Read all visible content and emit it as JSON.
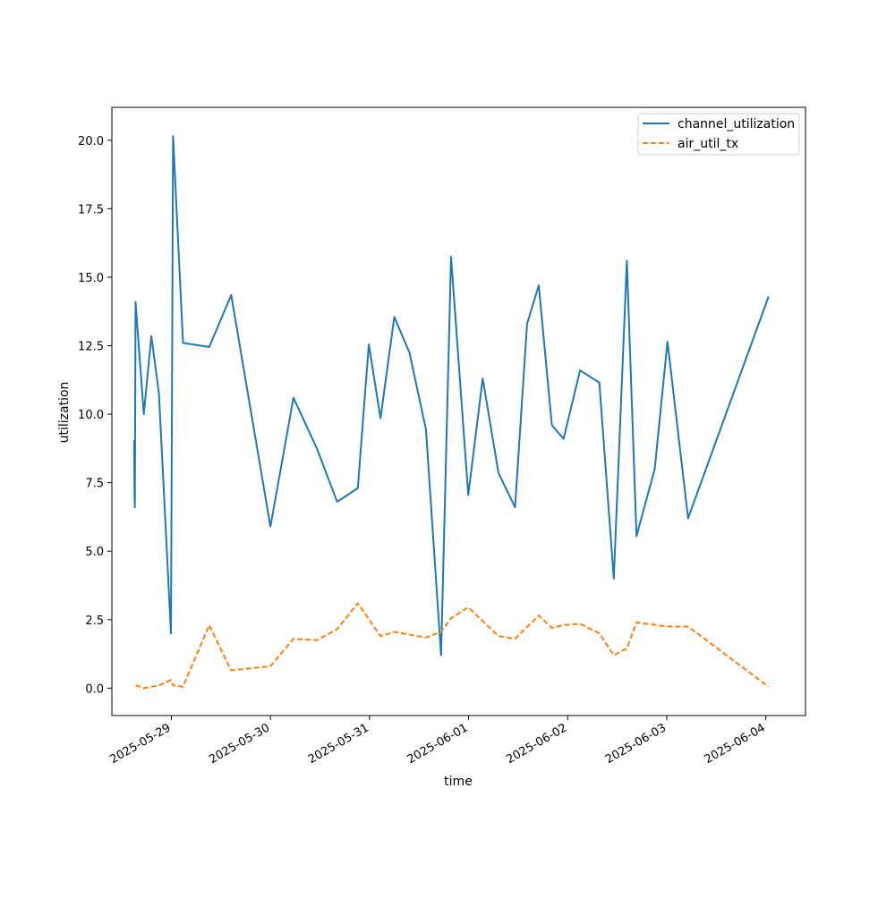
{
  "chart_data": {
    "type": "line",
    "title": "",
    "xlabel": "time",
    "ylabel": "utilization",
    "x_type": "datetime",
    "xlim": [
      "2025-05-28T09:36",
      "2025-06-04T09:36"
    ],
    "ylim": [
      -1.0,
      21.2
    ],
    "x_ticks": [
      "2025-05-29",
      "2025-05-30",
      "2025-05-31",
      "2025-06-01",
      "2025-06-02",
      "2025-06-03",
      "2025-06-04"
    ],
    "y_ticks": [
      "0.0",
      "2.5",
      "5.0",
      "7.5",
      "10.0",
      "12.5",
      "15.0",
      "17.5",
      "20.0"
    ],
    "grid": false,
    "legend_position": "top-right",
    "series": [
      {
        "name": "channel_utilization",
        "color": "#1f77b4",
        "line_style": "solid",
        "points": [
          [
            "2025-05-28T15:00",
            9.05
          ],
          [
            "2025-05-28T15:05",
            7.1
          ],
          [
            "2025-05-28T15:10",
            6.6
          ],
          [
            "2025-05-28T15:20",
            14.1
          ],
          [
            "2025-05-28T17:20",
            10.0
          ],
          [
            "2025-05-28T19:10",
            12.85
          ],
          [
            "2025-05-28T21:00",
            10.75
          ],
          [
            "2025-05-28T23:55",
            2.0
          ],
          [
            "2025-05-29T00:25",
            20.15
          ],
          [
            "2025-05-29T02:50",
            12.6
          ],
          [
            "2025-05-29T09:10",
            12.45
          ],
          [
            "2025-05-29T14:30",
            14.35
          ],
          [
            "2025-05-30T00:00",
            5.9
          ],
          [
            "2025-05-30T05:35",
            10.6
          ],
          [
            "2025-05-30T11:15",
            8.75
          ],
          [
            "2025-05-30T16:10",
            6.8
          ],
          [
            "2025-05-30T21:10",
            7.3
          ],
          [
            "2025-05-30T23:50",
            12.55
          ],
          [
            "2025-05-31T02:40",
            9.85
          ],
          [
            "2025-05-31T06:00",
            13.55
          ],
          [
            "2025-05-31T09:40",
            12.25
          ],
          [
            "2025-05-31T13:40",
            9.45
          ],
          [
            "2025-05-31T17:20",
            1.2
          ],
          [
            "2025-05-31T19:45",
            15.75
          ],
          [
            "2025-05-31T23:55",
            7.05
          ],
          [
            "2025-06-01T03:25",
            11.3
          ],
          [
            "2025-06-01T07:15",
            7.85
          ],
          [
            "2025-06-01T11:15",
            6.6
          ],
          [
            "2025-06-01T14:10",
            13.3
          ],
          [
            "2025-06-01T17:00",
            14.7
          ],
          [
            "2025-06-01T20:10",
            9.6
          ],
          [
            "2025-06-01T23:00",
            9.1
          ],
          [
            "2025-06-02T03:00",
            11.6
          ],
          [
            "2025-06-02T07:40",
            11.15
          ],
          [
            "2025-06-02T11:10",
            4.0
          ],
          [
            "2025-06-02T14:20",
            15.6
          ],
          [
            "2025-06-02T16:40",
            5.55
          ],
          [
            "2025-06-02T21:05",
            8.0
          ],
          [
            "2025-06-03T00:10",
            12.65
          ],
          [
            "2025-06-03T05:10",
            6.2
          ],
          [
            "2025-06-04T00:40",
            14.3
          ]
        ]
      },
      {
        "name": "air_util_tx",
        "color": "#ff7f0e",
        "line_style": "dashed",
        "points": [
          [
            "2025-05-28T15:20",
            0.1
          ],
          [
            "2025-05-28T17:20",
            0.0
          ],
          [
            "2025-05-28T21:00",
            0.1
          ],
          [
            "2025-05-28T23:55",
            0.3
          ],
          [
            "2025-05-29T00:25",
            0.1
          ],
          [
            "2025-05-29T02:50",
            0.05
          ],
          [
            "2025-05-29T09:10",
            2.3
          ],
          [
            "2025-05-29T14:30",
            0.65
          ],
          [
            "2025-05-30T00:00",
            0.8
          ],
          [
            "2025-05-30T05:35",
            1.8
          ],
          [
            "2025-05-30T11:15",
            1.75
          ],
          [
            "2025-05-30T16:10",
            2.15
          ],
          [
            "2025-05-30T21:10",
            3.1
          ],
          [
            "2025-05-31T02:40",
            1.9
          ],
          [
            "2025-05-31T06:00",
            2.05
          ],
          [
            "2025-05-31T13:40",
            1.85
          ],
          [
            "2025-05-31T17:20",
            2.05
          ],
          [
            "2025-05-31T19:45",
            2.55
          ],
          [
            "2025-05-31T23:55",
            2.95
          ],
          [
            "2025-06-01T07:15",
            1.9
          ],
          [
            "2025-06-01T11:15",
            1.8
          ],
          [
            "2025-06-01T17:00",
            2.65
          ],
          [
            "2025-06-01T20:10",
            2.2
          ],
          [
            "2025-06-01T23:00",
            2.3
          ],
          [
            "2025-06-02T03:00",
            2.35
          ],
          [
            "2025-06-02T07:40",
            2.0
          ],
          [
            "2025-06-02T11:10",
            1.2
          ],
          [
            "2025-06-02T14:20",
            1.45
          ],
          [
            "2025-06-02T16:40",
            2.4
          ],
          [
            "2025-06-03T00:10",
            2.25
          ],
          [
            "2025-06-03T05:10",
            2.25
          ],
          [
            "2025-06-04T00:40",
            0.05
          ]
        ]
      }
    ]
  }
}
